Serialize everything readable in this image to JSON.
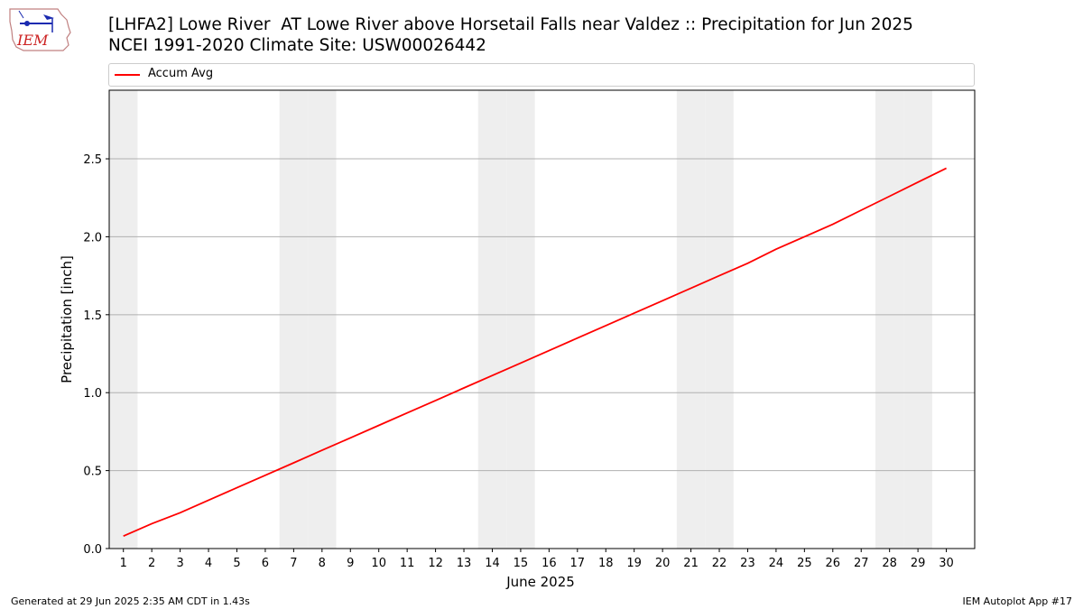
{
  "logo_text": "IEM",
  "title_line1": "[LHFA2] Lowe River  AT Lowe River above Horsetail Falls near Valdez :: Precipitation for Jun 2025",
  "title_line2": "NCEI 1991-2020 Climate Site: USW00026442",
  "footer_left": "Generated at 29 Jun 2025 2:35 AM CDT in 1.43s",
  "footer_right": "IEM Autoplot App #17",
  "colors": {
    "series": "#ff0000",
    "weekend_shade": "#eeeeee",
    "grid": "#b0b0b0"
  },
  "chart_data": {
    "type": "line",
    "title": "[LHFA2] Lowe River  AT Lowe River above Horsetail Falls near Valdez :: Precipitation for Jun 2025",
    "subtitle": "NCEI 1991-2020 Climate Site: USW00026442",
    "xlabel": "June 2025",
    "ylabel": "Precipitation [inch]",
    "x": [
      1,
      2,
      3,
      4,
      5,
      6,
      7,
      8,
      9,
      10,
      11,
      12,
      13,
      14,
      15,
      16,
      17,
      18,
      19,
      20,
      21,
      22,
      23,
      24,
      25,
      26,
      27,
      28,
      29,
      30
    ],
    "xlim": [
      0.5,
      31.0
    ],
    "ylim": [
      0,
      2.94
    ],
    "yticks": [
      0.0,
      0.5,
      1.0,
      1.5,
      2.0,
      2.5
    ],
    "ytick_labels": [
      "0.0",
      "0.5",
      "1.0",
      "1.5",
      "2.0",
      "2.5"
    ],
    "grid": "y",
    "legend_position": "top",
    "shaded_days": [
      1,
      7,
      8,
      14,
      15,
      21,
      22,
      28,
      29
    ],
    "series": [
      {
        "name": "Accum Avg",
        "color": "#ff0000",
        "values": [
          0.08,
          0.16,
          0.23,
          0.31,
          0.39,
          0.47,
          0.55,
          0.63,
          0.71,
          0.79,
          0.87,
          0.95,
          1.03,
          1.11,
          1.19,
          1.27,
          1.35,
          1.43,
          1.51,
          1.59,
          1.67,
          1.75,
          1.83,
          1.92,
          2.0,
          2.08,
          2.17,
          2.26,
          2.35,
          2.44
        ]
      }
    ]
  }
}
